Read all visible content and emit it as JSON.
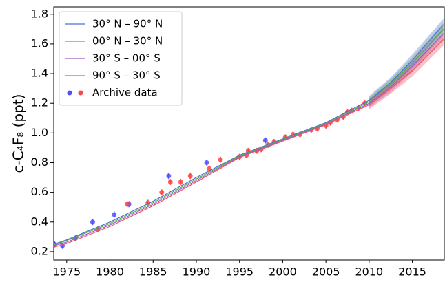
{
  "chart_data": {
    "type": "line",
    "ylabel": "c-C₄F₈ (ppt)",
    "x": [
      1973.5,
      1975,
      1980,
      1985,
      1990,
      1995,
      2000,
      2005,
      2010,
      2012.5,
      2015,
      2018.6
    ],
    "series": [
      {
        "name": "30° N – 90° N",
        "color": "#4f6fd0",
        "values": [
          0.25,
          0.28,
          0.4,
          0.54,
          0.7,
          0.85,
          0.96,
          1.07,
          1.22,
          1.34,
          1.49,
          1.73
        ],
        "errors": [
          null,
          null,
          null,
          null,
          null,
          null,
          null,
          null,
          0.03,
          0.035,
          0.04,
          0.04
        ]
      },
      {
        "name": "00° N – 30° N",
        "color": "#4fae4f",
        "values": [
          0.245,
          0.275,
          0.39,
          0.53,
          0.69,
          0.845,
          0.955,
          1.065,
          1.21,
          1.33,
          1.47,
          1.7
        ],
        "errors": [
          null,
          null,
          null,
          null,
          null,
          null,
          null,
          null,
          0.03,
          0.035,
          0.04,
          0.04
        ]
      },
      {
        "name": "30° S – 00° S",
        "color": "#a05cc8",
        "values": [
          0.24,
          0.265,
          0.38,
          0.52,
          0.68,
          0.84,
          0.95,
          1.06,
          1.2,
          1.31,
          1.45,
          1.67
        ],
        "errors": [
          null,
          null,
          null,
          null,
          null,
          null,
          null,
          null,
          0.03,
          0.035,
          0.04,
          0.04
        ]
      },
      {
        "name": "90° S – 30° S",
        "color": "#f05060",
        "values": [
          0.23,
          0.255,
          0.37,
          0.51,
          0.67,
          0.835,
          0.945,
          1.055,
          1.19,
          1.3,
          1.42,
          1.63
        ],
        "errors": [
          null,
          null,
          null,
          null,
          null,
          null,
          null,
          null,
          0.03,
          0.035,
          0.04,
          0.04
        ]
      }
    ],
    "archive_name": "Archive data",
    "points": [
      {
        "color": "#5050ff",
        "x": [
          1973.6,
          1974.5,
          1976,
          1978,
          1980.5,
          1982.2,
          1986.8,
          1991.2,
          1998
        ],
        "values": [
          0.25,
          0.24,
          0.29,
          0.4,
          0.45,
          0.52,
          0.71,
          0.8,
          0.95
        ],
        "errors": [
          0.02,
          0.02,
          0.02,
          0.02,
          0.02,
          0.02,
          0.02,
          0.02,
          0.02
        ]
      },
      {
        "color": "#ff4545",
        "x": [
          1978.6,
          1982,
          1984.4,
          1986,
          1987,
          1988.2,
          1989.3,
          1991.5,
          1992.8,
          1995,
          1995.8,
          1996,
          1997,
          1997.5,
          1998.3,
          1999,
          2000.3,
          2001.2,
          2002,
          2003.3,
          2004,
          2005,
          2005.5,
          2006.3,
          2007,
          2007.5,
          2008,
          2008.8,
          2009.5
        ],
        "values": [
          0.35,
          0.52,
          0.53,
          0.6,
          0.67,
          0.67,
          0.71,
          0.76,
          0.82,
          0.84,
          0.85,
          0.88,
          0.88,
          0.89,
          0.92,
          0.94,
          0.97,
          0.99,
          0.99,
          1.02,
          1.03,
          1.05,
          1.07,
          1.09,
          1.11,
          1.14,
          1.15,
          1.17,
          1.2
        ],
        "errors": [
          0.02,
          0.02,
          0.02,
          0.02,
          0.02,
          0.02,
          0.02,
          0.02,
          0.02,
          0.02,
          0.02,
          0.02,
          0.02,
          0.02,
          0.02,
          0.02,
          0.02,
          0.02,
          0.02,
          0.02,
          0.02,
          0.02,
          0.02,
          0.02,
          0.02,
          0.02,
          0.02,
          0.02,
          0.02
        ]
      }
    ],
    "xlim": [
      1973.5,
      2018.7
    ],
    "ylim": [
      0.144,
      1.85
    ],
    "xticks": [
      1975,
      1980,
      1985,
      1990,
      1995,
      2000,
      2005,
      2010,
      2015
    ],
    "yticks": [
      0.2,
      0.4,
      0.6,
      0.8,
      {
        "value": 1,
        "label": "1.0"
      },
      1.2,
      1.4,
      1.6,
      1.8
    ],
    "legend": "upper left",
    "grid": false
  }
}
